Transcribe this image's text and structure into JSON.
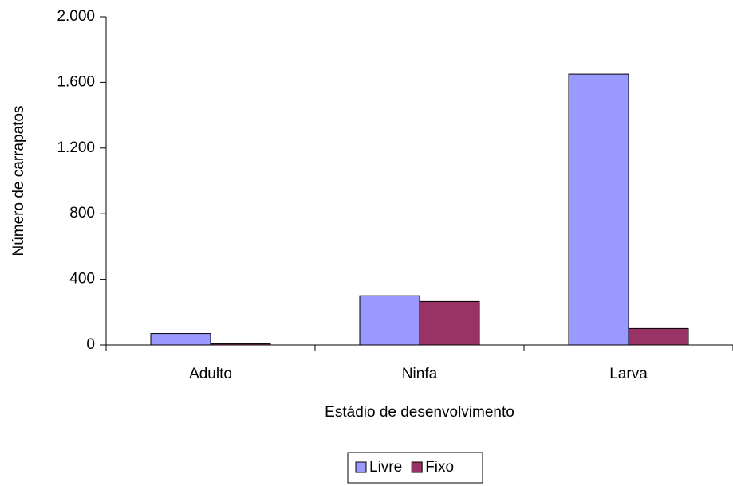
{
  "chart_data": {
    "type": "bar",
    "x_label": "Estádio de desenvolvimento",
    "y_label": "Número de carrapatos",
    "categories": [
      "Adulto",
      "Ninfa",
      "Larva"
    ],
    "series": [
      {
        "name": "Livre",
        "color": "#9999ff",
        "values": [
          70,
          300,
          1650
        ]
      },
      {
        "name": "Fixo",
        "color": "#993366",
        "values": [
          8,
          265,
          100
        ]
      }
    ],
    "ylim": [
      0,
      2000
    ],
    "yticks": [
      0,
      400,
      800,
      {
        "value": 1200,
        "label": "1.200"
      },
      {
        "value": 1600,
        "label": "1.600"
      },
      {
        "value": 2000,
        "label": "2.000"
      }
    ],
    "legend": "bottom"
  }
}
